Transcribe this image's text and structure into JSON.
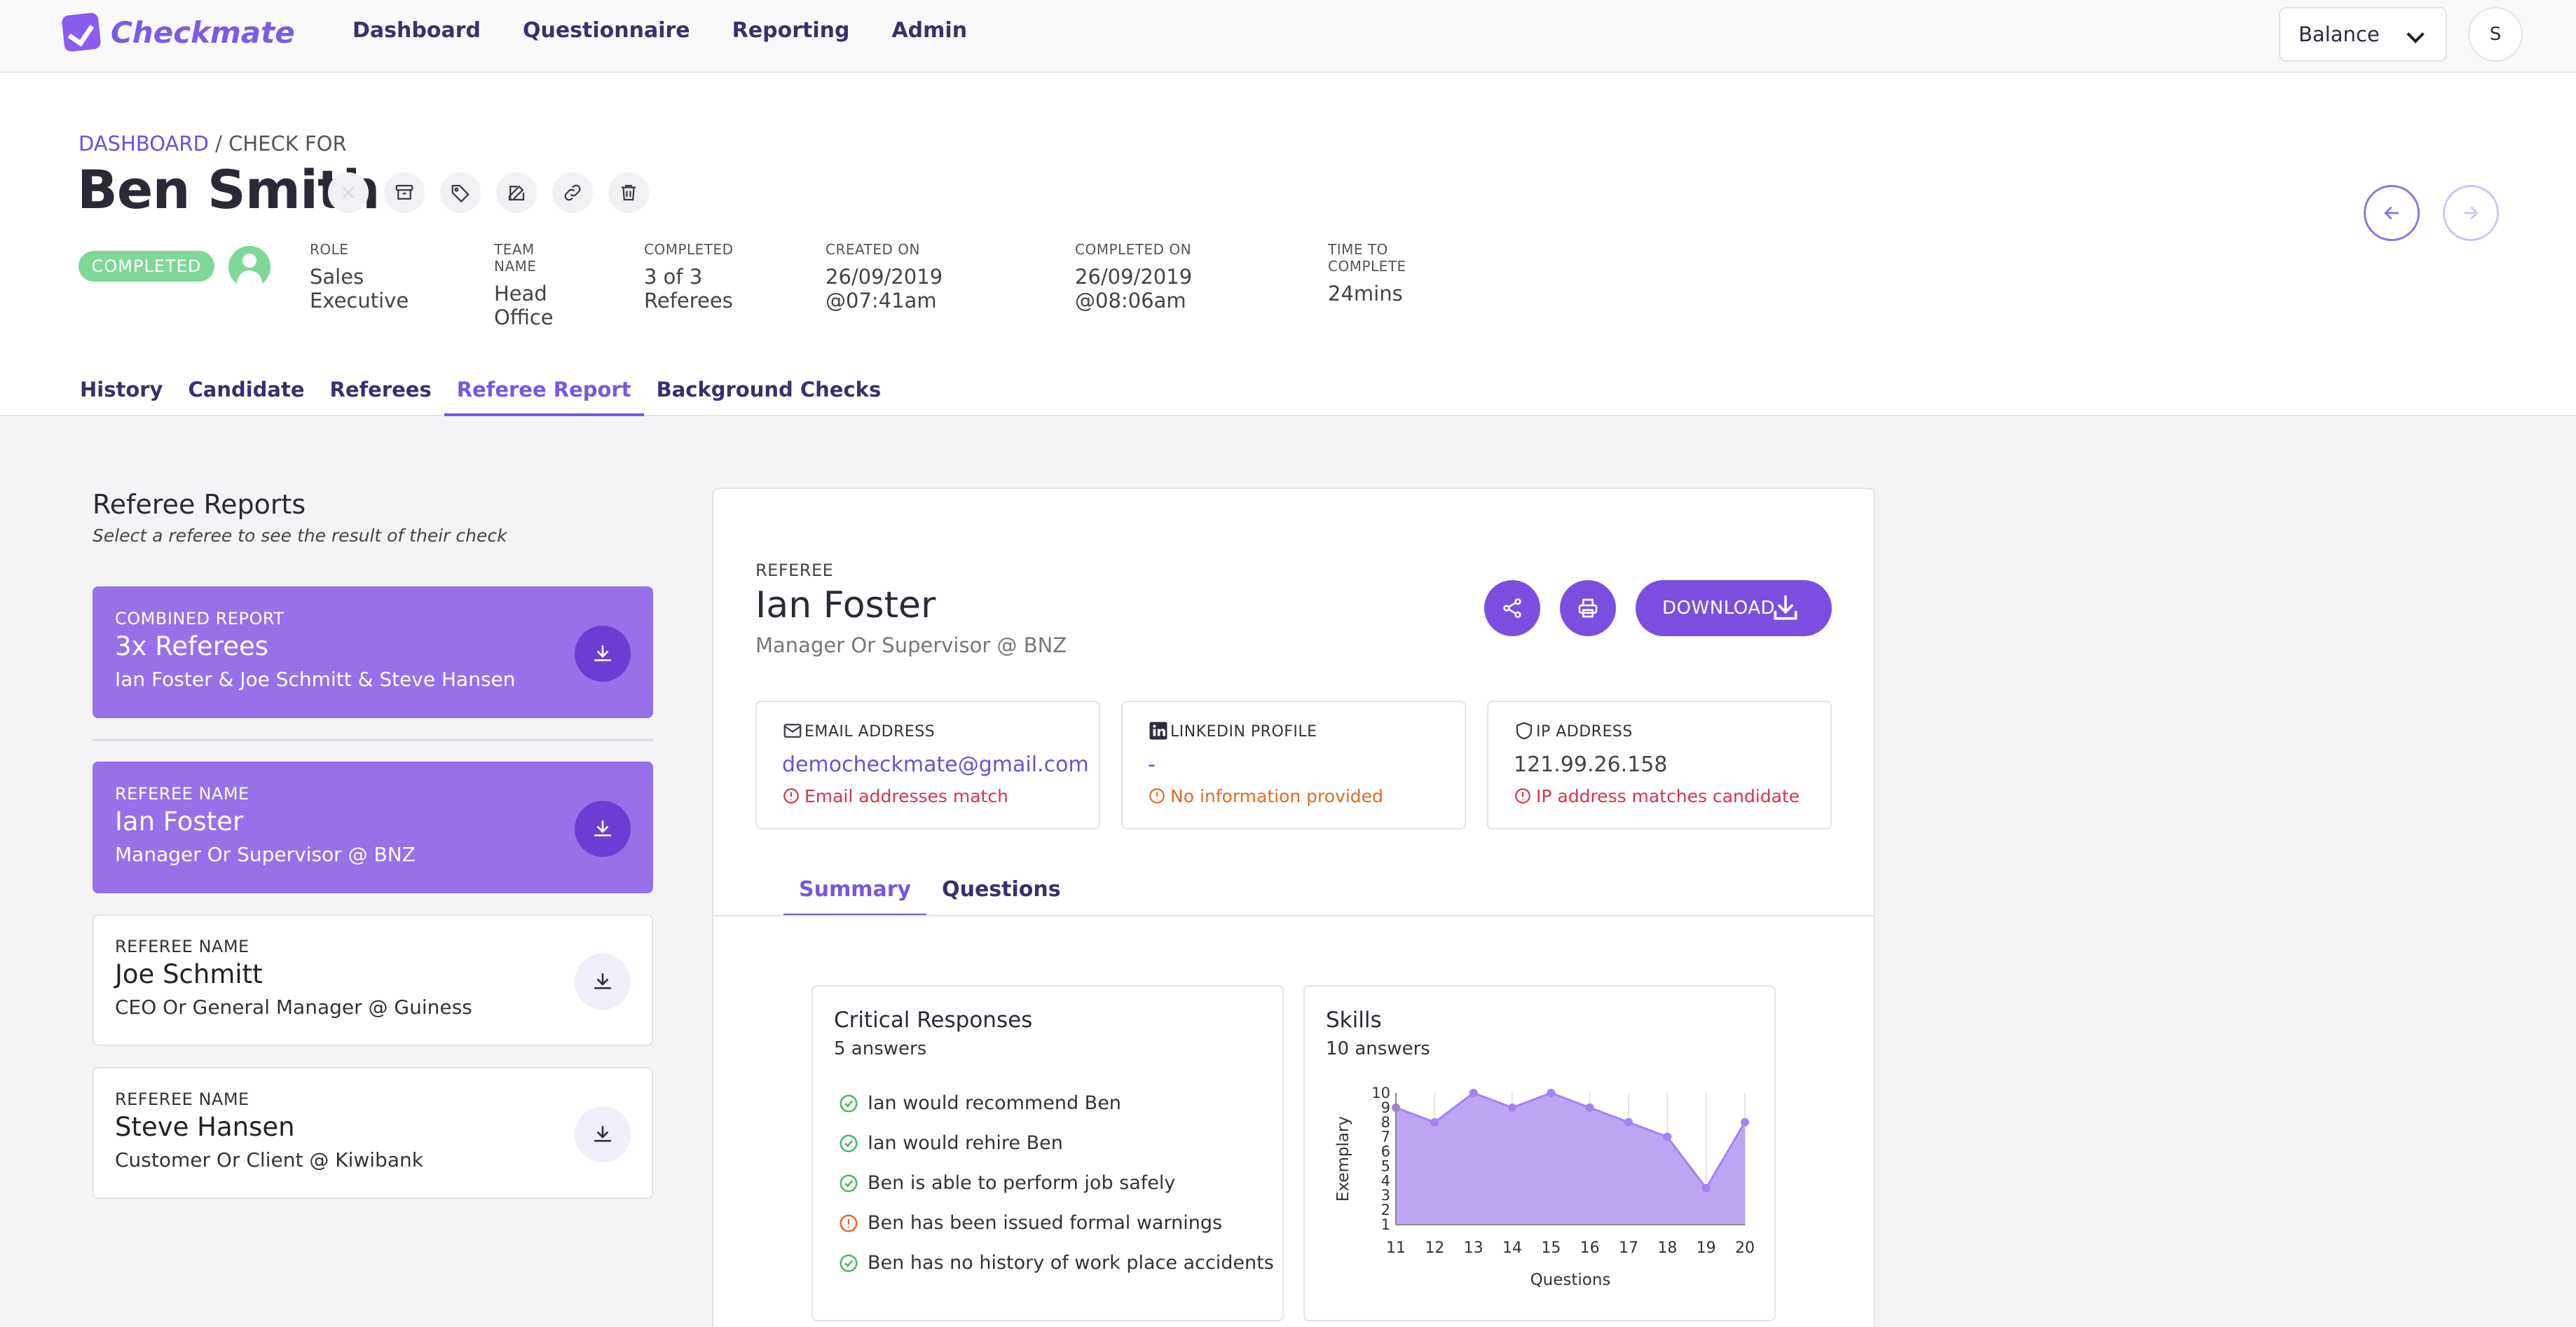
{
  "app": {
    "logo_text": "Checkmate",
    "nav": [
      "Dashboard",
      "Questionnaire",
      "Reporting",
      "Admin"
    ],
    "balance_label": "Balance",
    "user_initial": "S",
    "accent_color": "#7a4fe0"
  },
  "header": {
    "breadcrumb_link": "DASHBOARD",
    "breadcrumb_rest": " / CHECK FOR",
    "title": "Ben Smith",
    "status": "COMPLETED",
    "meta": [
      {
        "label": "ROLE",
        "value": "Sales Executive"
      },
      {
        "label": "TEAM NAME",
        "value": "Head Office"
      },
      {
        "label": "COMPLETED",
        "value": "3 of 3 Referees"
      },
      {
        "label": "CREATED ON",
        "value": "26/09/2019 @07:41am"
      },
      {
        "label": "COMPLETED ON",
        "value": "26/09/2019 @08:06am"
      },
      {
        "label": "TIME TO COMPLETE",
        "value": "24mins"
      }
    ],
    "tabs": [
      "History",
      "Candidate",
      "Referees",
      "Referee Report",
      "Background Checks"
    ],
    "active_tab": "Referee Report"
  },
  "left": {
    "title": "Referee Reports",
    "subtitle": "Select a referee to see the result of their check",
    "combined": {
      "label": "COMBINED REPORT",
      "name": "3x Referees",
      "sub": "Ian Foster & Joe Schmitt & Steve Hansen"
    },
    "referees": [
      {
        "label": "REFEREE NAME",
        "name": "Ian Foster",
        "sub": "Manager Or Supervisor @ BNZ",
        "active": true
      },
      {
        "label": "REFEREE NAME",
        "name": "Joe Schmitt",
        "sub": "CEO Or General Manager @ Guiness",
        "active": false
      },
      {
        "label": "REFEREE NAME",
        "name": "Steve Hansen",
        "sub": "Customer Or Client @ Kiwibank",
        "active": false
      }
    ]
  },
  "report": {
    "label": "REFEREE",
    "name": "Ian Foster",
    "role": "Manager Or Supervisor @ BNZ",
    "download_label": "DOWNLOAD",
    "email": {
      "label": "EMAIL ADDRESS",
      "value": "democheckmate@gmail.com",
      "note": "Email addresses match"
    },
    "linkedin": {
      "label": "LINKEDIN PROFILE",
      "value": "-",
      "note": "No information provided"
    },
    "ip": {
      "label": "IP ADDRESS",
      "value": "121.99.26.158",
      "note": "IP address matches candidate"
    },
    "sub_tabs": [
      "Summary",
      "Questions"
    ],
    "active_sub_tab": "Summary",
    "critical": {
      "title": "Critical Responses",
      "count": "5 answers",
      "items": [
        {
          "text": "Ian would recommend Ben",
          "status": "ok"
        },
        {
          "text": "Ian would rehire Ben",
          "status": "ok"
        },
        {
          "text": "Ben is able to perform job safely",
          "status": "ok"
        },
        {
          "text": "Ben has been issued formal warnings",
          "status": "warn"
        },
        {
          "text": "Ben has no history of work place accidents",
          "status": "ok"
        }
      ]
    },
    "skills": {
      "title": "Skills",
      "count": "10 answers"
    }
  },
  "chart_data": {
    "type": "area",
    "x": [
      11,
      12,
      13,
      14,
      15,
      16,
      17,
      18,
      19,
      20
    ],
    "y": [
      9,
      8,
      10,
      9,
      10,
      9,
      8,
      7,
      3.5,
      8
    ],
    "xlabel": "Questions",
    "ylabel": "Exemplary",
    "ylim": [
      1,
      10
    ],
    "yticks": [
      1,
      2,
      3,
      4,
      5,
      6,
      7,
      8,
      9,
      10
    ],
    "grid": "vertical",
    "fill_color": "#b9a1f3",
    "line_color": "#a383ef"
  }
}
